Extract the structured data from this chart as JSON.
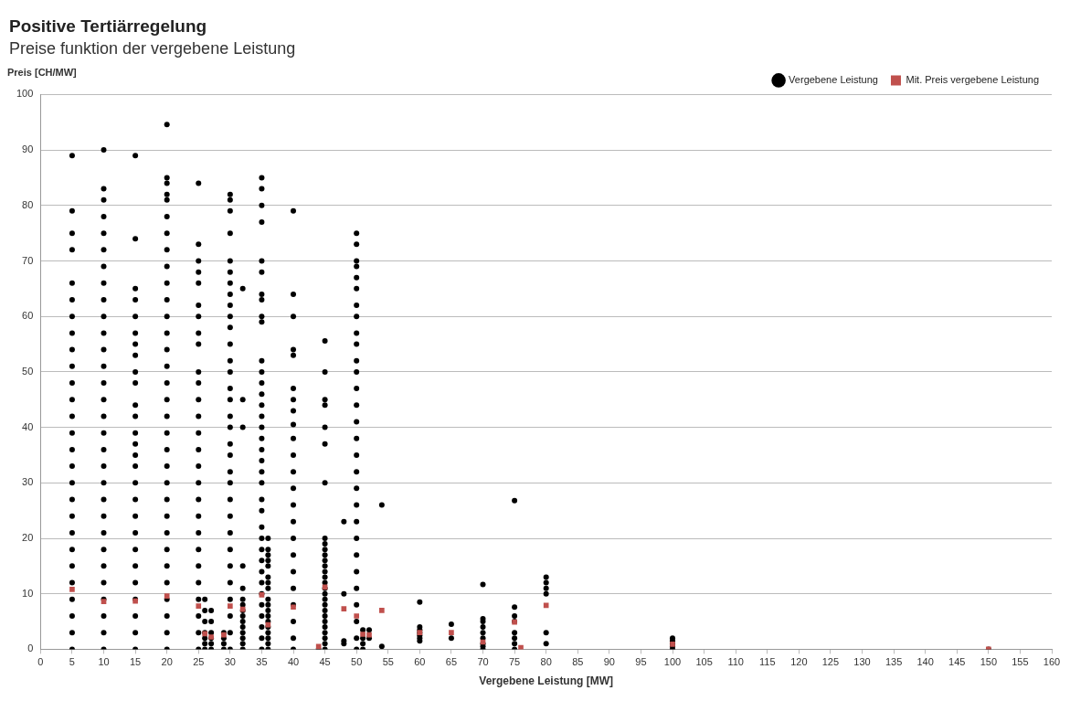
{
  "chart_data": {
    "type": "scatter",
    "title": "Positive Tertiärregelung",
    "subtitle": "Preise funktion der vergebene Leistung",
    "xlabel": "Vergebene Leistung [MW]",
    "ylabel": "Preis [CH/MW]",
    "xlim": [
      0,
      160
    ],
    "xticks": [
      0,
      5,
      10,
      15,
      20,
      25,
      30,
      35,
      40,
      45,
      50,
      55,
      60,
      65,
      70,
      75,
      80,
      85,
      90,
      95,
      100,
      105,
      110,
      115,
      120,
      125,
      130,
      135,
      140,
      145,
      150,
      155,
      160
    ],
    "ylim": [
      0,
      100
    ],
    "yticks": [
      0,
      10,
      20,
      30,
      40,
      50,
      60,
      70,
      80,
      90,
      100
    ],
    "grid": "y",
    "legend": "top right",
    "marker": "circle",
    "series": [
      {
        "name": "Vergebene Leistung",
        "color": "#000000",
        "x": [
          5,
          5,
          5,
          5,
          5,
          5,
          5,
          5,
          5,
          5,
          5,
          5,
          5,
          5,
          5,
          5,
          5,
          5,
          5,
          5,
          5,
          5,
          5,
          5,
          5,
          5,
          5,
          10,
          10,
          10,
          10,
          10,
          10,
          10,
          10,
          10,
          10,
          10,
          10,
          10,
          10,
          10,
          10,
          10,
          10,
          10,
          10,
          10,
          10,
          10,
          10,
          10,
          10,
          10,
          10,
          10,
          10,
          15,
          15,
          15,
          15,
          15,
          15,
          15,
          15,
          15,
          15,
          15,
          15,
          15,
          15,
          15,
          15,
          15,
          15,
          15,
          15,
          15,
          15,
          15,
          15,
          15,
          15,
          15,
          20,
          20,
          20,
          20,
          20,
          20,
          20,
          20,
          20,
          20,
          20,
          20,
          20,
          20,
          20,
          20,
          20,
          20,
          20,
          20,
          20,
          20,
          20,
          20,
          20,
          20,
          20,
          20,
          20,
          20,
          20,
          20,
          25,
          25,
          25,
          25,
          25,
          25,
          25,
          25,
          25,
          25,
          25,
          25,
          25,
          25,
          25,
          25,
          25,
          25,
          25,
          25,
          25,
          25,
          25,
          25,
          25,
          25,
          25,
          26,
          26,
          26,
          26,
          26,
          26,
          26,
          27,
          27,
          27,
          27,
          27,
          27,
          29,
          29,
          29,
          29,
          30,
          30,
          30,
          30,
          30,
          30,
          30,
          30,
          30,
          30,
          30,
          30,
          30,
          30,
          30,
          30,
          30,
          30,
          30,
          30,
          30,
          30,
          30,
          30,
          30,
          30,
          30,
          30,
          30,
          30,
          30,
          30,
          32,
          32,
          32,
          32,
          32,
          32,
          32,
          32,
          32,
          32,
          32,
          32,
          32,
          32,
          32,
          35,
          35,
          35,
          35,
          35,
          35,
          35,
          35,
          35,
          35,
          35,
          35,
          35,
          35,
          35,
          35,
          35,
          35,
          35,
          35,
          35,
          35,
          35,
          35,
          35,
          35,
          35,
          35,
          35,
          35,
          35,
          35,
          35,
          35,
          35,
          35,
          36,
          36,
          36,
          36,
          36,
          36,
          36,
          36,
          36,
          36,
          36,
          36,
          36,
          36,
          36,
          36,
          36,
          36,
          40,
          40,
          40,
          40,
          40,
          40,
          40,
          40,
          40,
          40,
          40,
          40,
          40,
          40,
          40,
          40,
          40,
          40,
          40,
          40,
          40,
          40,
          40,
          44,
          45,
          45,
          45,
          45,
          45,
          45,
          45,
          45,
          45,
          45,
          45,
          45,
          45,
          45,
          45,
          45,
          45,
          45,
          45,
          45,
          45,
          45,
          45,
          45,
          45,
          45,
          45,
          45,
          48,
          48,
          48,
          48,
          50,
          50,
          50,
          50,
          50,
          50,
          50,
          50,
          50,
          50,
          50,
          50,
          50,
          50,
          50,
          50,
          50,
          50,
          50,
          50,
          50,
          50,
          50,
          50,
          50,
          50,
          50,
          50,
          50,
          51,
          51,
          51,
          51,
          52,
          52,
          54,
          54,
          60,
          60,
          60,
          60,
          60,
          60,
          60,
          65,
          65,
          70,
          70,
          70,
          70,
          70,
          70,
          70,
          70,
          70,
          75,
          75,
          75,
          75,
          75,
          75,
          75,
          75,
          80,
          80,
          80,
          80,
          80,
          80,
          100,
          100,
          100,
          100,
          100,
          150
        ],
        "values": [
          89,
          79,
          75,
          72,
          66,
          63,
          60,
          57,
          54,
          51,
          48,
          45,
          42,
          39,
          36,
          33,
          30,
          27,
          24,
          21,
          18,
          15,
          12,
          9,
          6,
          3,
          0,
          90,
          83,
          81,
          78,
          75,
          72,
          69,
          66,
          63,
          60,
          57,
          54,
          51,
          48,
          45,
          42,
          39,
          36,
          33,
          30,
          27,
          24,
          21,
          18,
          15,
          12,
          9,
          6,
          3,
          0,
          89,
          74,
          65,
          63,
          60,
          57,
          55,
          53,
          50,
          48,
          44,
          42,
          39,
          37,
          35,
          33,
          30,
          27,
          24,
          21,
          18,
          15,
          12,
          9,
          6,
          3,
          0,
          94.6,
          85,
          84,
          82,
          81,
          78,
          75,
          72,
          69,
          66,
          63,
          60,
          57,
          54,
          51,
          48,
          45,
          42,
          39,
          36,
          33,
          30,
          27,
          24,
          21,
          18,
          15,
          12,
          9,
          6,
          3,
          0,
          84,
          73,
          70,
          68,
          66,
          62,
          60,
          57,
          55,
          50,
          48,
          45,
          42,
          39,
          36,
          33,
          30,
          27,
          24,
          21,
          18,
          15,
          12,
          9,
          6,
          3,
          0,
          9,
          7,
          5,
          3,
          2,
          1,
          0,
          7,
          5,
          3,
          2,
          1,
          0,
          3,
          2,
          1,
          0,
          82,
          81,
          79,
          75,
          70,
          68,
          66,
          64,
          62,
          60,
          58,
          55,
          52,
          50,
          47,
          45,
          42,
          40,
          37,
          35,
          32,
          30,
          27,
          24,
          21,
          18,
          15,
          12,
          9,
          6,
          3,
          0,
          65,
          45,
          40,
          15,
          11,
          9,
          8,
          7,
          6,
          5,
          4,
          3,
          2,
          1,
          0,
          85,
          83,
          80,
          77,
          70,
          68,
          64,
          63,
          60,
          59,
          52,
          50,
          48,
          46,
          44,
          42,
          40,
          38,
          36,
          34,
          32,
          30,
          27,
          25,
          22,
          20,
          18,
          16,
          14,
          12,
          10,
          8,
          6,
          4,
          2,
          0,
          20,
          18,
          17,
          16,
          15,
          13,
          12,
          11,
          9,
          8,
          7,
          6,
          5,
          4,
          3,
          2,
          1,
          0,
          79,
          64,
          60,
          54,
          53,
          47,
          45,
          43,
          40.5,
          38,
          35,
          32,
          29,
          26,
          23,
          20,
          17,
          14,
          11,
          8,
          5,
          2,
          0,
          0,
          55.6,
          50,
          45,
          44,
          40,
          37,
          30,
          20,
          19,
          18,
          17,
          16,
          15,
          14,
          13,
          12,
          11,
          10,
          9,
          8,
          7,
          6,
          5,
          4,
          3,
          2,
          1,
          0,
          23,
          10,
          1.5,
          1,
          75,
          73,
          70,
          69,
          67,
          65,
          62,
          60,
          57,
          55,
          52,
          50,
          47,
          44,
          41,
          38,
          35,
          32,
          29,
          26,
          23,
          20,
          17,
          14,
          11,
          8,
          5,
          2,
          0,
          3.5,
          2,
          1,
          0,
          3.5,
          2,
          26,
          0.5,
          8.5,
          4,
          3.5,
          3,
          2.5,
          2,
          1.5,
          4.5,
          2,
          11.7,
          5.5,
          5,
          4,
          3,
          2,
          1,
          0.5,
          0,
          26.8,
          7.6,
          6,
          5,
          3,
          2,
          1,
          0,
          13,
          12,
          11,
          10,
          3,
          1,
          2,
          1.5,
          1,
          0.5,
          0,
          0
        ]
      },
      {
        "name": "Mit. Preis vergebene Leistung",
        "color": "#c0504d",
        "marker": "square",
        "x": [
          5,
          10,
          15,
          20,
          25,
          26,
          27,
          29,
          30,
          32,
          35,
          36,
          40,
          44,
          45,
          48,
          50,
          51,
          52,
          54,
          60,
          65,
          70,
          75,
          76,
          80,
          100,
          150
        ],
        "values": [
          10.8,
          8.6,
          8.7,
          9.6,
          7.8,
          2.8,
          2.2,
          2.6,
          7.8,
          7.2,
          9.8,
          4.4,
          7.6,
          0.5,
          11.2,
          7.3,
          6,
          2.7,
          2.6,
          7,
          3,
          3,
          1.3,
          4.9,
          0.3,
          7.9,
          0.9,
          0
        ]
      }
    ]
  }
}
